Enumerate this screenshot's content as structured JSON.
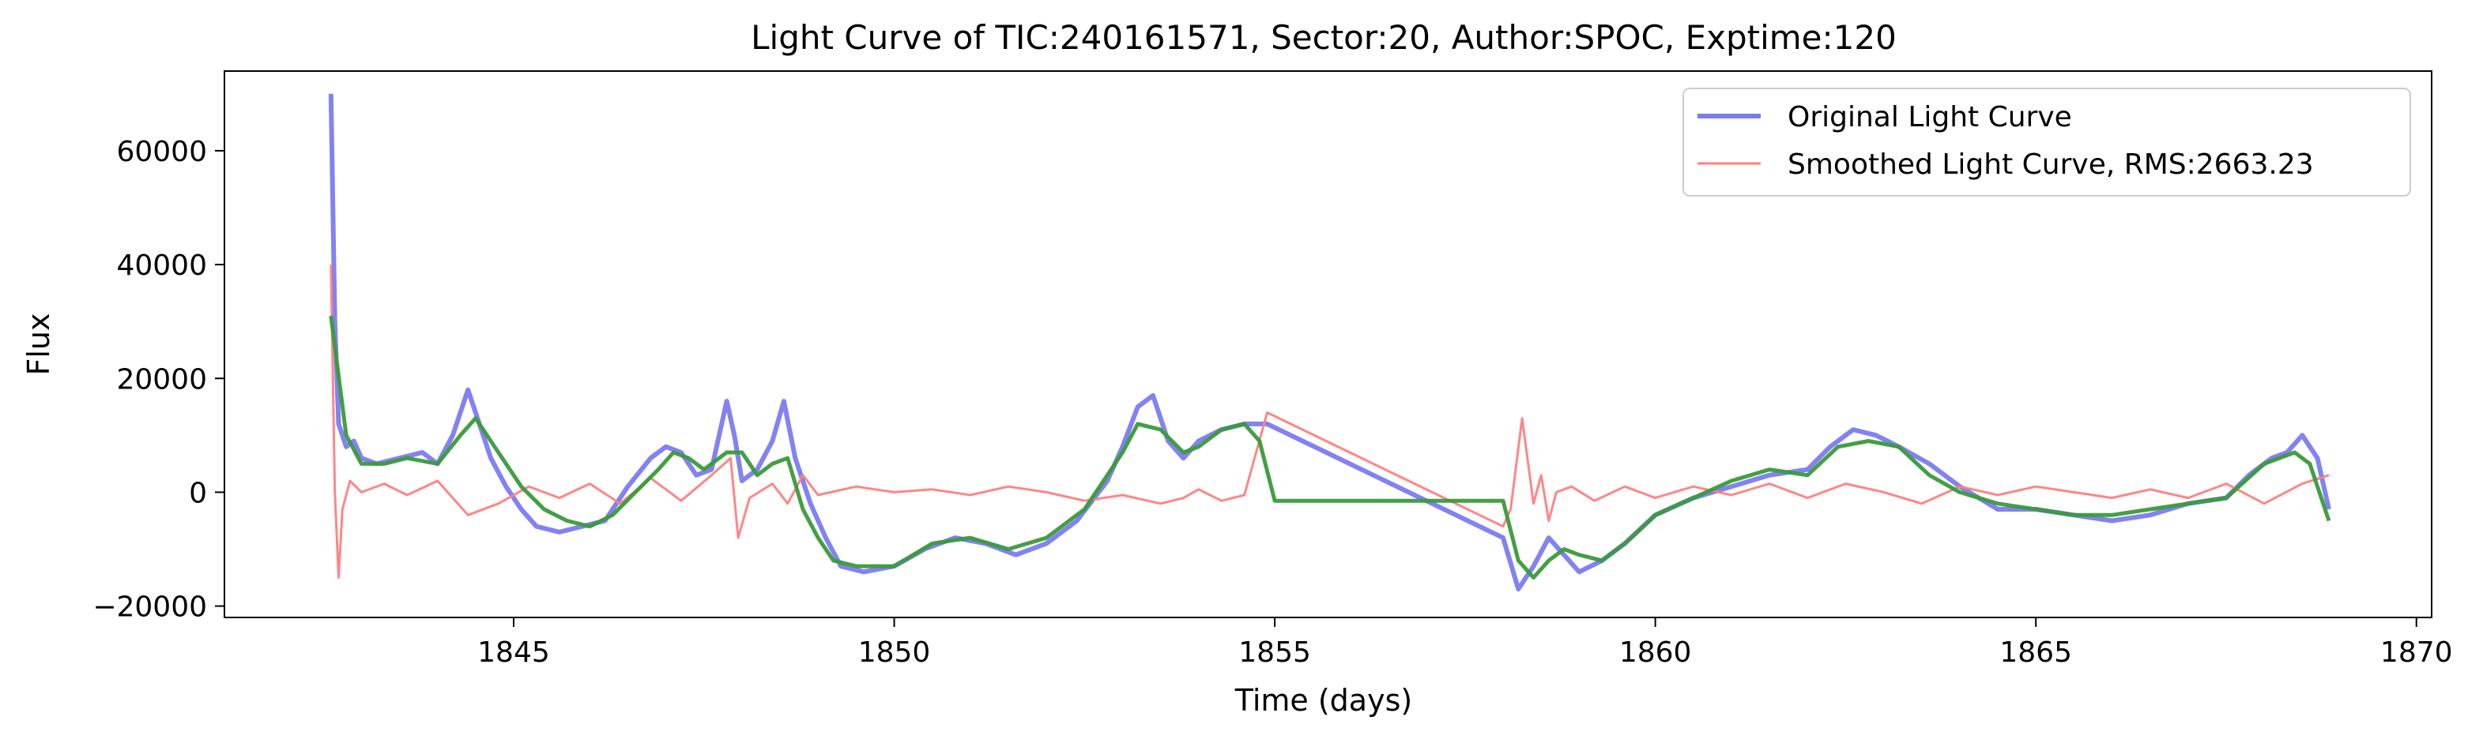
{
  "chart_data": {
    "type": "line",
    "title": "Light Curve of TIC:240161571, Sector:20, Author:SPOC, Exptime:120",
    "xlabel": "Time (days)",
    "ylabel": "Flux",
    "xlim": [
      1841.2,
      1870.2
    ],
    "ylim": [
      -22000,
      74000
    ],
    "x_ticks": [
      1845,
      1850,
      1855,
      1860,
      1865,
      1870
    ],
    "y_ticks": [
      -20000,
      0,
      20000,
      40000,
      60000
    ],
    "x_tick_labels": [
      "1845",
      "1850",
      "1855",
      "1860",
      "1865",
      "1870"
    ],
    "y_tick_labels": [
      "−20000",
      "0",
      "20000",
      "40000",
      "60000"
    ],
    "grid": false,
    "legend_position": "top-right",
    "legend": [
      {
        "label": "Original Light Curve",
        "color": "#7b7bf2"
      },
      {
        "label": "Smoothed Light Curve, RMS:2663.23",
        "color": "#ff7f7f"
      }
    ],
    "series": [
      {
        "name": "Original Light Curve",
        "color": "#7b7bf2",
        "x": [
          1842.6,
          1842.65,
          1842.7,
          1842.8,
          1842.9,
          1843.0,
          1843.2,
          1843.5,
          1843.8,
          1844.0,
          1844.2,
          1844.4,
          1844.5,
          1844.7,
          1844.9,
          1845.1,
          1845.3,
          1845.6,
          1845.9,
          1846.2,
          1846.5,
          1846.8,
          1847.0,
          1847.2,
          1847.4,
          1847.6,
          1847.8,
          1847.9,
          1848.0,
          1848.2,
          1848.4,
          1848.55,
          1848.7,
          1848.9,
          1849.1,
          1849.3,
          1849.6,
          1850.0,
          1850.4,
          1850.8,
          1851.2,
          1851.6,
          1852.0,
          1852.4,
          1852.8,
          1853.0,
          1853.2,
          1853.4,
          1853.6,
          1853.8,
          1854.0,
          1854.3,
          1854.6,
          1854.9,
          1858.0,
          1858.2,
          1858.4,
          1858.6,
          1858.8,
          1859.0,
          1859.3,
          1859.6,
          1860.0,
          1860.5,
          1861.0,
          1861.5,
          1862.0,
          1862.3,
          1862.6,
          1862.9,
          1863.2,
          1863.6,
          1864.0,
          1864.5,
          1865.0,
          1865.5,
          1866.0,
          1866.5,
          1867.0,
          1867.5,
          1867.8,
          1868.1,
          1868.3,
          1868.5,
          1868.7,
          1868.85
        ],
        "values": [
          70000,
          30000,
          12000,
          8000,
          9000,
          6000,
          5000,
          6000,
          7000,
          5000,
          10000,
          18000,
          14000,
          6000,
          1000,
          -3000,
          -6000,
          -7000,
          -6000,
          -5000,
          1000,
          6000,
          8000,
          7000,
          3000,
          4000,
          16000,
          10000,
          2000,
          4000,
          9000,
          16000,
          6000,
          -2000,
          -8000,
          -13000,
          -14000,
          -13000,
          -10000,
          -8000,
          -9000,
          -11000,
          -9000,
          -5000,
          2000,
          8000,
          15000,
          17000,
          9000,
          6000,
          9000,
          11000,
          12000,
          12000,
          -8000,
          -17000,
          -13000,
          -8000,
          -11000,
          -14000,
          -12000,
          -9000,
          -4000,
          -1000,
          1000,
          3000,
          4000,
          8000,
          11000,
          10000,
          8000,
          5000,
          1000,
          -3000,
          -3000,
          -4000,
          -5000,
          -4000,
          -2000,
          -1000,
          3000,
          6000,
          7000,
          10000,
          6000,
          -3000
        ]
      },
      {
        "name": "Smoothed Light Curve, RMS:2663.23",
        "color": "#ff7f7f",
        "x": [
          1842.6,
          1842.65,
          1842.7,
          1842.75,
          1842.85,
          1843.0,
          1843.3,
          1843.6,
          1844.0,
          1844.4,
          1844.8,
          1845.2,
          1845.6,
          1846.0,
          1846.4,
          1846.8,
          1847.2,
          1847.6,
          1847.85,
          1847.95,
          1848.1,
          1848.4,
          1848.6,
          1848.8,
          1849.0,
          1849.5,
          1850.0,
          1850.5,
          1851.0,
          1851.5,
          1852.0,
          1852.5,
          1853.0,
          1853.5,
          1853.8,
          1854.0,
          1854.3,
          1854.6,
          1854.9,
          1858.0,
          1858.1,
          1858.25,
          1858.4,
          1858.5,
          1858.6,
          1858.7,
          1858.9,
          1859.2,
          1859.6,
          1860.0,
          1860.5,
          1861.0,
          1861.5,
          1862.0,
          1862.5,
          1863.0,
          1863.5,
          1864.0,
          1864.5,
          1865.0,
          1865.5,
          1866.0,
          1866.5,
          1867.0,
          1867.5,
          1868.0,
          1868.5,
          1868.85
        ],
        "values": [
          40000,
          0,
          -15000,
          -3000,
          2000,
          0,
          1500,
          -500,
          2000,
          -4000,
          -2000,
          1000,
          -1000,
          1500,
          -2000,
          2500,
          -1500,
          3000,
          6000,
          -8000,
          -1000,
          1500,
          -2000,
          3000,
          -500,
          1000,
          0,
          500,
          -500,
          1000,
          0,
          -1500,
          -500,
          -2000,
          -1000,
          500,
          -1500,
          -500,
          14000,
          -6000,
          -3000,
          13000,
          -2000,
          3000,
          -5000,
          0,
          1000,
          -1500,
          1000,
          -1000,
          1000,
          -500,
          1500,
          -1000,
          1500,
          0,
          -2000,
          1000,
          -500,
          1000,
          0,
          -1000,
          500,
          -1000,
          1500,
          -2000,
          1500,
          3000
        ]
      },
      {
        "name": "",
        "color": "#3a9a3a",
        "x": [
          1842.6,
          1842.8,
          1843.0,
          1843.3,
          1843.6,
          1844.0,
          1844.3,
          1844.5,
          1844.8,
          1845.1,
          1845.4,
          1845.7,
          1846.0,
          1846.3,
          1846.6,
          1846.9,
          1847.1,
          1847.3,
          1847.5,
          1847.8,
          1848.0,
          1848.2,
          1848.4,
          1848.6,
          1848.8,
          1849.0,
          1849.2,
          1849.5,
          1850.0,
          1850.5,
          1851.0,
          1851.5,
          1852.0,
          1852.5,
          1853.0,
          1853.2,
          1853.5,
          1853.8,
          1854.0,
          1854.3,
          1854.6,
          1854.8,
          1855.0,
          1858.0,
          1858.2,
          1858.4,
          1858.6,
          1858.8,
          1859.0,
          1859.3,
          1859.6,
          1860.0,
          1860.5,
          1861.0,
          1861.5,
          1862.0,
          1862.4,
          1862.8,
          1863.2,
          1863.6,
          1864.0,
          1864.5,
          1865.0,
          1865.5,
          1866.0,
          1866.5,
          1867.0,
          1867.5,
          1868.0,
          1868.4,
          1868.6,
          1868.85
        ],
        "values": [
          31000,
          10000,
          5000,
          5000,
          6000,
          5000,
          10000,
          13000,
          7000,
          1000,
          -3000,
          -5000,
          -6000,
          -4000,
          0,
          4000,
          7000,
          6000,
          4000,
          7000,
          7000,
          3000,
          5000,
          6000,
          -3000,
          -8000,
          -12000,
          -13000,
          -13000,
          -9000,
          -8000,
          -10000,
          -8000,
          -3000,
          7000,
          12000,
          11000,
          7000,
          8000,
          11000,
          12000,
          9000,
          -1500,
          -1500,
          -12000,
          -15000,
          -12000,
          -10000,
          -11000,
          -12000,
          -9000,
          -4000,
          -1000,
          2000,
          4000,
          3000,
          8000,
          9000,
          8000,
          3000,
          0,
          -2000,
          -3000,
          -4000,
          -4000,
          -3000,
          -2000,
          -1000,
          5000,
          7000,
          5000,
          -5000
        ]
      }
    ]
  }
}
